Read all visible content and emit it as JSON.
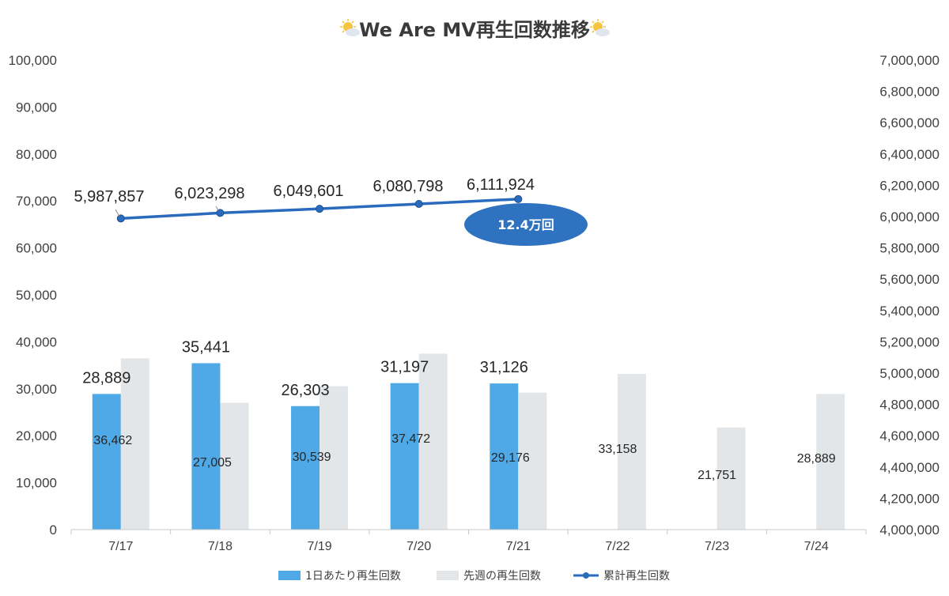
{
  "chart_data": {
    "type": "bar",
    "title": "We Are MV再生回数推移",
    "categories": [
      "7/17",
      "7/18",
      "7/19",
      "7/20",
      "7/21",
      "7/22",
      "7/23",
      "7/24"
    ],
    "series": [
      {
        "name": "1日あたり再生回数",
        "type": "bar",
        "axis": "left",
        "color": "#4fa9e6",
        "values": [
          28889,
          35441,
          26303,
          31197,
          31126,
          null,
          null,
          null
        ],
        "labels": [
          "28,889",
          "35,441",
          "26,303",
          "31,197",
          "31,126",
          "",
          "",
          ""
        ]
      },
      {
        "name": "先週の再生回数",
        "type": "bar",
        "axis": "left",
        "color": "#e3e6e8",
        "values": [
          36462,
          27005,
          30539,
          37472,
          29176,
          33158,
          21751,
          28889
        ],
        "labels": [
          "36,462",
          "27,005",
          "30,539",
          "37,472",
          "29,176",
          "33,158",
          "21,751",
          "28,889"
        ]
      },
      {
        "name": "累計再生回数",
        "type": "line",
        "axis": "right",
        "color": "#2a6bbd",
        "values": [
          5987857,
          6023298,
          6049601,
          6080798,
          6111924,
          null,
          null,
          null
        ],
        "labels": [
          "5,987,857",
          "6,023,298",
          "6,049,601",
          "6,080,798",
          "6,111,924",
          "",
          "",
          ""
        ]
      }
    ],
    "y_left": {
      "lim": [
        0,
        100000
      ],
      "ticks": [
        "0",
        "10,000",
        "20,000",
        "30,000",
        "40,000",
        "50,000",
        "60,000",
        "70,000",
        "80,000",
        "90,000",
        "100,000"
      ]
    },
    "y_right": {
      "lim": [
        4000000,
        7000000
      ],
      "ticks": [
        "4,000,000",
        "4,200,000",
        "4,400,000",
        "4,600,000",
        "4,800,000",
        "5,000,000",
        "5,200,000",
        "5,400,000",
        "5,600,000",
        "5,800,000",
        "6,000,000",
        "6,200,000",
        "6,400,000",
        "6,600,000",
        "6,800,000",
        "7,000,000"
      ]
    },
    "annotation": "12.4万回",
    "annotation_color": "#2f73c0",
    "grid": false,
    "legend": "bottom"
  }
}
